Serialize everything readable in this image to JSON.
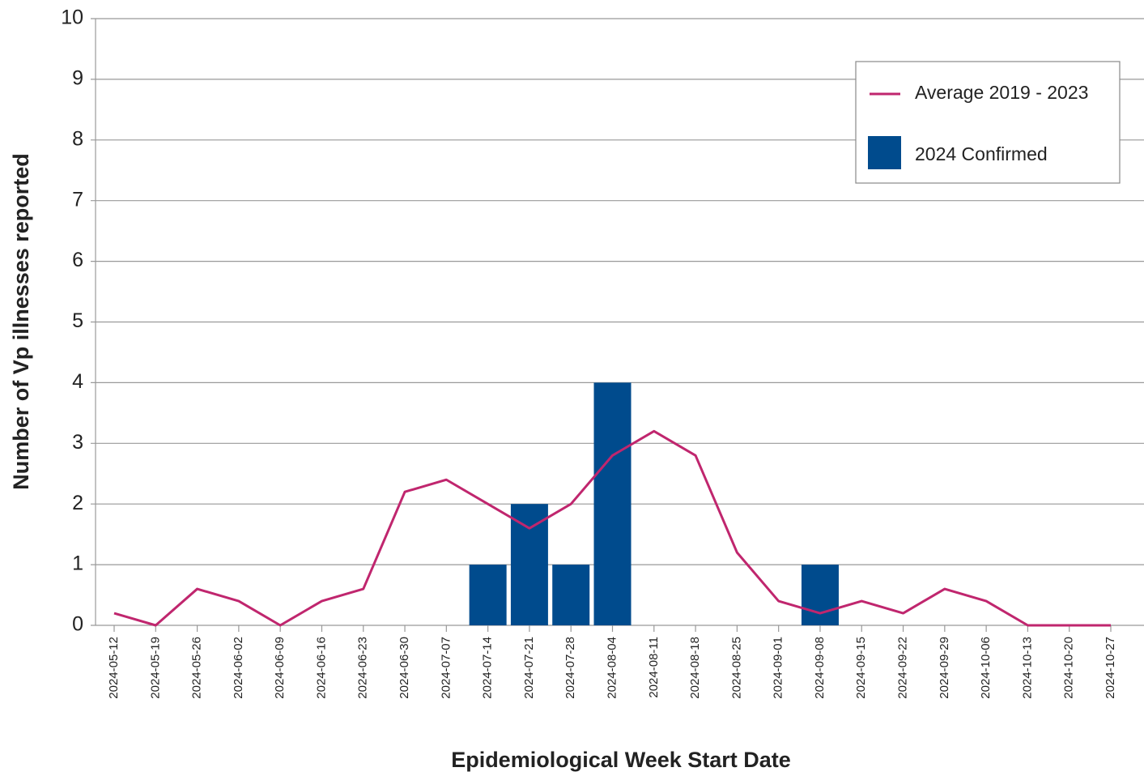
{
  "chart_data": {
    "type": "bar_line",
    "xlabel": "Epidemiological Week Start Date",
    "ylabel": "Number of Vp illnesses reported",
    "categories": [
      "2024-05-12",
      "2024-05-19",
      "2024-05-26",
      "2024-06-02",
      "2024-06-09",
      "2024-06-16",
      "2024-06-23",
      "2024-06-30",
      "2024-07-07",
      "2024-07-14",
      "2024-07-21",
      "2024-07-28",
      "2024-08-04",
      "2024-08-11",
      "2024-08-18",
      "2024-08-25",
      "2024-09-01",
      "2024-09-08",
      "2024-09-15",
      "2024-09-22",
      "2024-09-29",
      "2024-10-06",
      "2024-10-13",
      "2024-10-20",
      "2024-10-27"
    ],
    "series": [
      {
        "name": "Average 2019 - 2023",
        "type": "line",
        "color": "#c0266e",
        "values": [
          0.2,
          0,
          0.6,
          0.4,
          0,
          0.4,
          0.6,
          2.2,
          2.4,
          2.0,
          1.6,
          2.0,
          2.8,
          3.2,
          2.8,
          1.2,
          0.4,
          0.2,
          0.4,
          0.2,
          0.6,
          0.4,
          0,
          0,
          0
        ]
      },
      {
        "name": "2024 Confirmed",
        "type": "bar",
        "color": "#004b8d",
        "values": [
          0,
          0,
          0,
          0,
          0,
          0,
          0,
          0,
          0,
          1,
          2,
          1,
          4,
          0,
          0,
          0,
          0,
          1,
          0,
          0,
          0,
          0,
          0,
          0,
          0
        ]
      }
    ],
    "ylim": [
      0,
      10
    ],
    "yticks": [
      0,
      1,
      2,
      3,
      4,
      5,
      6,
      7,
      8,
      9,
      10
    ],
    "grid": true,
    "legend": "upper right"
  }
}
